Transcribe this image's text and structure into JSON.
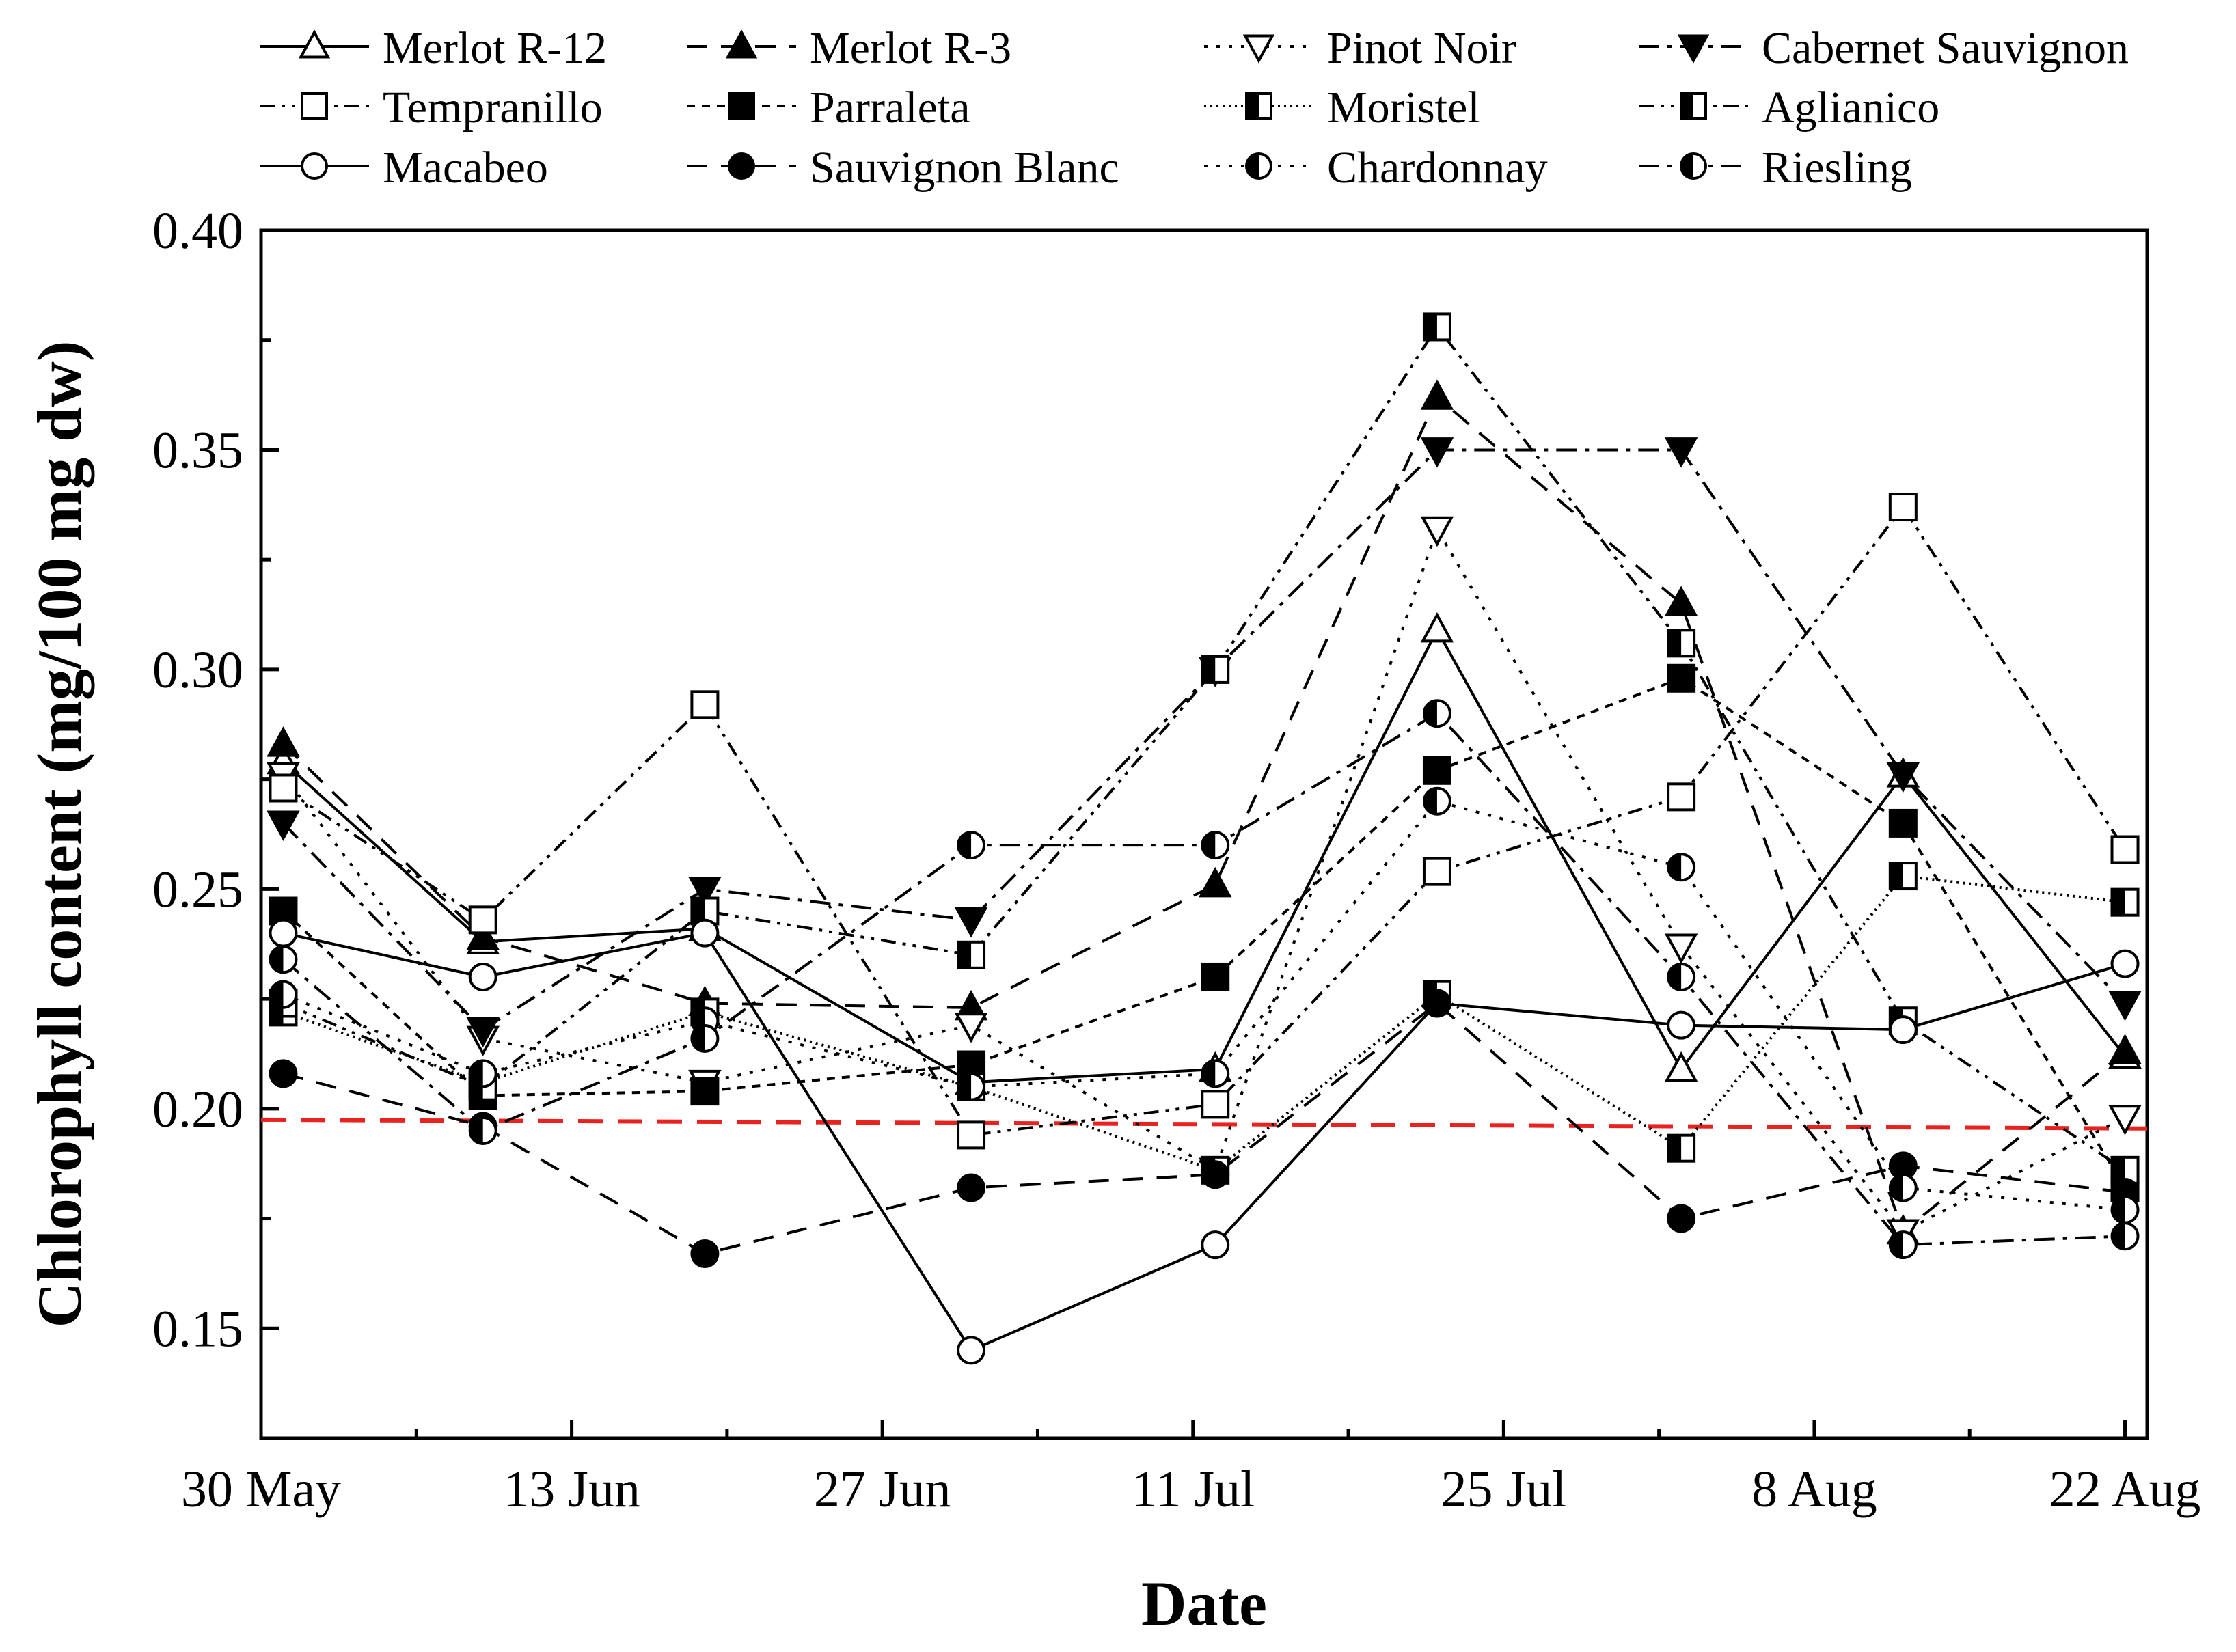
{
  "chart_data": {
    "type": "line",
    "title": "",
    "xlabel": "Date",
    "ylabel": "Chlorophyll content (mg/100 mg dw)",
    "x_unit": "days since 30 May",
    "xlim": [
      0,
      85
    ],
    "ylim": [
      0.125,
      0.4
    ],
    "x_ticks": [
      {
        "day": 0,
        "label": "30 May"
      },
      {
        "day": 14,
        "label": "13 Jun"
      },
      {
        "day": 28,
        "label": "27 Jun"
      },
      {
        "day": 42,
        "label": "11 Jul"
      },
      {
        "day": 56,
        "label": "25 Jul"
      },
      {
        "day": 70,
        "label": "8 Aug"
      },
      {
        "day": 84,
        "label": "22 Aug"
      }
    ],
    "x_minor_ticks": [
      7,
      21,
      35,
      49,
      63,
      77
    ],
    "y_ticks": [
      {
        "value": 0.15,
        "label": "0.15"
      },
      {
        "value": 0.2,
        "label": "0.20"
      },
      {
        "value": 0.25,
        "label": "0.25"
      },
      {
        "value": 0.3,
        "label": "0.30"
      },
      {
        "value": 0.35,
        "label": "0.35"
      },
      {
        "value": 0.4,
        "label": "0.40"
      }
    ],
    "y_minor_ticks": [
      0.175,
      0.225,
      0.275,
      0.325,
      0.375
    ],
    "reference_line": {
      "y_start": 0.1975,
      "y_end": 0.1955,
      "color": "#e8231f",
      "dash": "dashed"
    },
    "legend": {
      "position": "top",
      "columns": 4
    },
    "series": [
      {
        "name": "Merlot R-12",
        "marker": "triangle-up",
        "fill": "open",
        "dash": "solid",
        "x": [
          1,
          10,
          20,
          32,
          43,
          53,
          64,
          74,
          84
        ],
        "y": [
          0.279,
          0.238,
          0.241,
          0.206,
          0.209,
          0.309,
          0.209,
          0.276,
          0.212
        ]
      },
      {
        "name": "Merlot R-3",
        "marker": "triangle-up",
        "fill": "filled",
        "dash": "dashed",
        "x": [
          1,
          10,
          20,
          32,
          43,
          53,
          64,
          74,
          84
        ],
        "y": [
          0.283,
          0.239,
          0.224,
          0.223,
          0.251,
          0.362,
          0.315,
          0.172,
          0.213
        ]
      },
      {
        "name": "Pinot Noir",
        "marker": "triangle-down",
        "fill": "open",
        "dash": "dotted",
        "x": [
          1,
          10,
          20,
          32,
          43,
          53,
          64,
          74,
          84
        ],
        "y": [
          0.276,
          0.216,
          0.206,
          0.219,
          0.186,
          0.332,
          0.237,
          0.172,
          0.198
        ]
      },
      {
        "name": "Cabernet Sauvignon",
        "marker": "triangle-down",
        "fill": "filled",
        "dash": "dash-dot",
        "x": [
          1,
          10,
          20,
          32,
          43,
          53,
          64,
          74,
          84
        ],
        "y": [
          0.265,
          0.218,
          0.25,
          0.243,
          0.3,
          0.35,
          0.35,
          0.276,
          0.224
        ]
      },
      {
        "name": "Tempranillo",
        "marker": "square",
        "fill": "open",
        "dash": "dash-dot-dot",
        "x": [
          1,
          10,
          20,
          32,
          43,
          53,
          64,
          74,
          84
        ],
        "y": [
          0.273,
          0.243,
          0.292,
          0.194,
          0.201,
          0.254,
          0.271,
          0.337,
          0.259
        ]
      },
      {
        "name": "Parraleta",
        "marker": "square",
        "fill": "filled",
        "dash": "short-dash",
        "x": [
          1,
          10,
          20,
          32,
          43,
          53,
          64,
          74,
          84
        ],
        "y": [
          0.245,
          0.203,
          0.204,
          0.21,
          0.23,
          0.277,
          0.298,
          0.265,
          0.182
        ]
      },
      {
        "name": "Moristel",
        "marker": "square",
        "fill": "half",
        "dash": "fine-dotted",
        "x": [
          1,
          10,
          20,
          32,
          43,
          53,
          64,
          74,
          84
        ],
        "y": [
          0.222,
          0.206,
          0.222,
          0.205,
          0.186,
          0.226,
          0.191,
          0.253,
          0.247
        ]
      },
      {
        "name": "Aglianico",
        "marker": "square",
        "fill": "half",
        "dash": "dash-dot-dot",
        "x": [
          1,
          10,
          20,
          32,
          43,
          53,
          64,
          74,
          84
        ],
        "y": [
          0.224,
          0.205,
          0.245,
          0.235,
          0.3,
          0.378,
          0.306,
          0.22,
          0.186
        ]
      },
      {
        "name": "Macabeo",
        "marker": "circle",
        "fill": "open",
        "dash": "solid",
        "x": [
          1,
          10,
          20,
          32,
          43,
          53,
          64,
          74,
          84
        ],
        "y": [
          0.24,
          0.23,
          0.24,
          0.145,
          0.169,
          0.224,
          0.219,
          0.218,
          0.233
        ]
      },
      {
        "name": "Sauvignon Blanc",
        "marker": "circle",
        "fill": "filled",
        "dash": "dashed",
        "x": [
          1,
          10,
          20,
          32,
          43,
          53,
          64,
          74,
          84
        ],
        "y": [
          0.208,
          0.196,
          0.167,
          0.182,
          0.185,
          0.224,
          0.175,
          0.187,
          0.181
        ]
      },
      {
        "name": "Chardonnay",
        "marker": "circle",
        "fill": "half",
        "dash": "dotted",
        "x": [
          1,
          10,
          20,
          32,
          43,
          53,
          64,
          74,
          84
        ],
        "y": [
          0.226,
          0.208,
          0.22,
          0.205,
          0.208,
          0.27,
          0.255,
          0.182,
          0.177
        ]
      },
      {
        "name": "Riesling",
        "marker": "circle",
        "fill": "half",
        "dash": "dash-dot",
        "x": [
          1,
          10,
          20,
          32,
          43,
          53,
          64,
          74,
          84
        ],
        "y": [
          0.234,
          0.195,
          0.216,
          0.26,
          0.26,
          0.29,
          0.23,
          0.169,
          0.171
        ]
      }
    ]
  }
}
